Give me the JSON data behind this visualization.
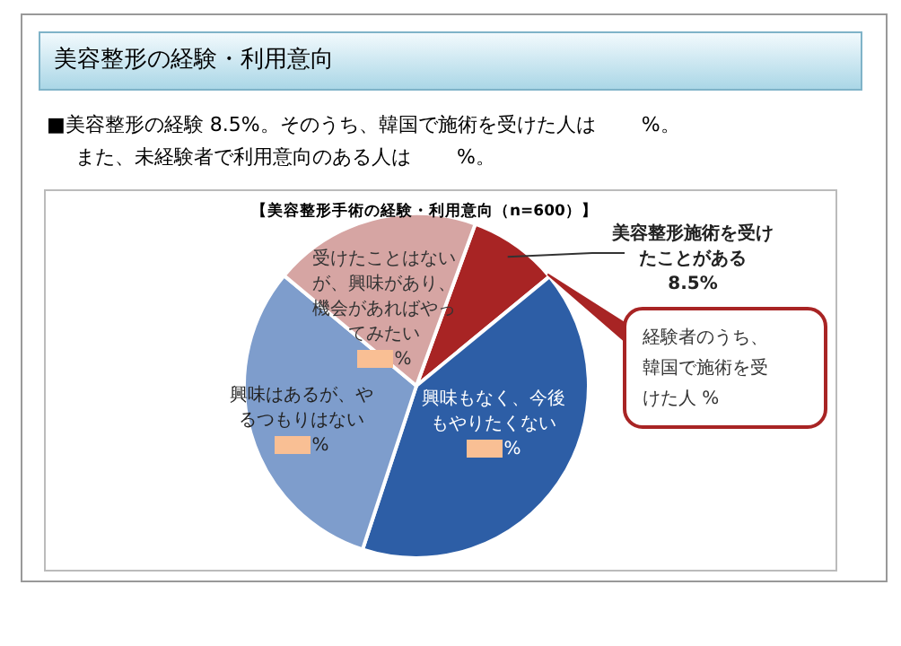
{
  "chart_data": {
    "type": "pie",
    "title": "美容整形の経験・利用意向",
    "subtitle": "【美容整形手術の経験・利用意向（n=600）】",
    "categories": [
      "美容整形施術を受けたことがある",
      "興味もなく、今後もやりたくない",
      "興味はあるが、やるつもりはない",
      "受けたことはないが、興味があり、機会があればやってみたい"
    ],
    "values": [
      8.5,
      41,
      31,
      19.5
    ],
    "colors": [
      "#a82424",
      "#2d5ea6",
      "#7e9dcc",
      "#d6a5a3"
    ],
    "value_labels": [
      "8.5%",
      "%",
      "%",
      "%"
    ],
    "annotations": [
      "■美容整形の経験 8.5%。そのうち、韓国で施術を受けた人は 　　%。",
      "また、未経験者で利用意向のある人は 　　%。",
      "経験者のうち、韓国で施術を受けた人 %"
    ]
  }
}
